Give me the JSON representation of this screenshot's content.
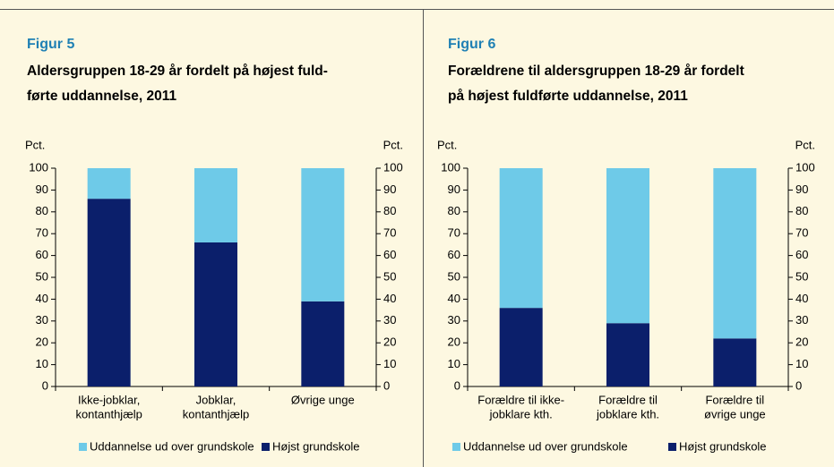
{
  "chart_data": [
    {
      "type": "stacked_bar",
      "label": "Figur 5",
      "title": [
        "Aldersgruppen 18-29 år fordelt på højest fuld-",
        "førte uddannelse, 2011"
      ],
      "ylabel": "Pct.",
      "y2label": "Pct.",
      "categories": [
        [
          "Ikke-jobklar,",
          "kontanthjælp"
        ],
        [
          "Jobklar,",
          "kontanthjælp"
        ],
        [
          "Øvrige unge"
        ]
      ],
      "series": [
        {
          "name": "Uddannelse ud over grundskole",
          "color": "#6ecae8",
          "values": [
            14,
            34,
            61
          ]
        },
        {
          "name": "Højst grundskole",
          "color": "#0b1f6b",
          "values": [
            86,
            66,
            39
          ]
        }
      ],
      "ylim": [
        0,
        100
      ],
      "yticks": [
        0,
        10,
        20,
        30,
        40,
        50,
        60,
        70,
        80,
        90,
        100
      ],
      "y2lim": [
        0,
        100
      ],
      "y2ticks": [
        0,
        10,
        20,
        30,
        40,
        50,
        60,
        70,
        80,
        90,
        100
      ]
    },
    {
      "type": "stacked_bar",
      "label": "Figur 6",
      "title": [
        "Forældrene til aldersgruppen 18-29 år fordelt",
        "på højest fuldførte uddannelse, 2011"
      ],
      "ylabel": "Pct.",
      "y2label": "Pct.",
      "categories": [
        [
          "Forældre til ikke-",
          "jobklare kth."
        ],
        [
          "Forældre til",
          "jobklare kth."
        ],
        [
          "Forældre til",
          "øvrige unge"
        ]
      ],
      "series": [
        {
          "name": "Uddannelse ud over grundskole",
          "color": "#6ecae8",
          "values": [
            64,
            71,
            78
          ]
        },
        {
          "name": "Højst grundskole",
          "color": "#0b1f6b",
          "values": [
            36,
            29,
            22
          ]
        }
      ],
      "ylim": [
        0,
        100
      ],
      "yticks": [
        0,
        10,
        20,
        30,
        40,
        50,
        60,
        70,
        80,
        90,
        100
      ],
      "y2lim": [
        0,
        100
      ],
      "y2ticks": [
        0,
        10,
        20,
        30,
        40,
        50,
        60,
        70,
        80,
        90,
        100
      ]
    }
  ]
}
